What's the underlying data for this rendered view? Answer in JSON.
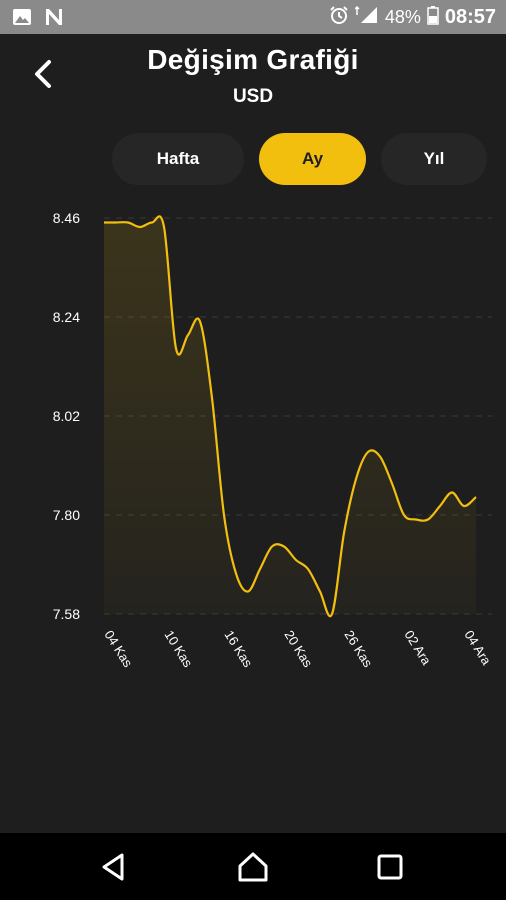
{
  "status_bar": {
    "battery": "48%",
    "time": "08:57",
    "icons": [
      "image-icon",
      "n-app-icon",
      "alarm-icon",
      "signal-icon",
      "battery-icon"
    ]
  },
  "header": {
    "title": "Değişim Grafiği",
    "subtitle": "USD",
    "back_icon": "chevron-left-icon"
  },
  "tabs": [
    {
      "label": "Hafta",
      "active": false
    },
    {
      "label": "Ay",
      "active": true
    },
    {
      "label": "Yıl",
      "active": false
    }
  ],
  "nav_bar": {
    "icons": [
      "back-triangle-icon",
      "home-icon",
      "recents-square-icon"
    ]
  },
  "colors": {
    "accent": "#f2bf0f",
    "background": "#1e1e1e",
    "tab_inactive": "#262626"
  },
  "chart_data": {
    "type": "area",
    "ylim": [
      7.58,
      8.46
    ],
    "y_ticks": [
      "8.46",
      "8.24",
      "8.02",
      "7.80",
      "7.58"
    ],
    "x_tick_labels": [
      "04 Kas",
      "10 Kas",
      "16 Kas",
      "20 Kas",
      "26 Kas",
      "02 Ara",
      "04 Ara"
    ],
    "x_tick_index": [
      0,
      5,
      10,
      15,
      20,
      25,
      30
    ],
    "grid": "horizontal-dashed",
    "series": [
      {
        "values": [
          8.45,
          8.45,
          8.45,
          8.44,
          8.45,
          8.44,
          8.17,
          8.2,
          8.23,
          8.06,
          7.8,
          7.67,
          7.63,
          7.68,
          7.73,
          7.73,
          7.7,
          7.68,
          7.63,
          7.58,
          7.76,
          7.88,
          7.94,
          7.93,
          7.87,
          7.8,
          7.79,
          7.79,
          7.82,
          7.85,
          7.82,
          7.84
        ]
      }
    ]
  }
}
